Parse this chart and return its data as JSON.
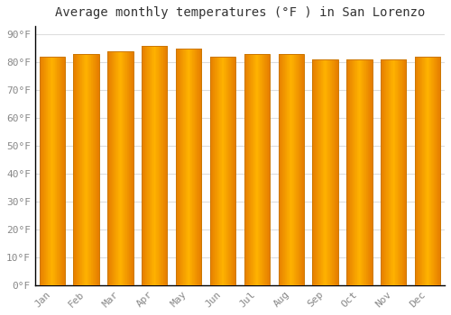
{
  "title": "Average monthly temperatures (°F ) in San Lorenzo",
  "months": [
    "Jan",
    "Feb",
    "Mar",
    "Apr",
    "May",
    "Jun",
    "Jul",
    "Aug",
    "Sep",
    "Oct",
    "Nov",
    "Dec"
  ],
  "values": [
    82,
    83,
    84,
    86,
    85,
    82,
    83,
    83,
    81,
    81,
    81,
    82
  ],
  "bar_color_center": "#FFB300",
  "bar_color_edge": "#E67E00",
  "bar_color_highlight": "#FFCC00",
  "background_color": "#FFFFFF",
  "plot_bg_color": "#FFFFFF",
  "grid_color": "#dddddd",
  "spine_color": "#000000",
  "yticks": [
    0,
    10,
    20,
    30,
    40,
    50,
    60,
    70,
    80,
    90
  ],
  "ylim": [
    0,
    93
  ],
  "xlim": [
    -0.5,
    11.5
  ],
  "title_fontsize": 10,
  "tick_fontsize": 8,
  "tick_color": "#888888",
  "bar_width": 0.75
}
